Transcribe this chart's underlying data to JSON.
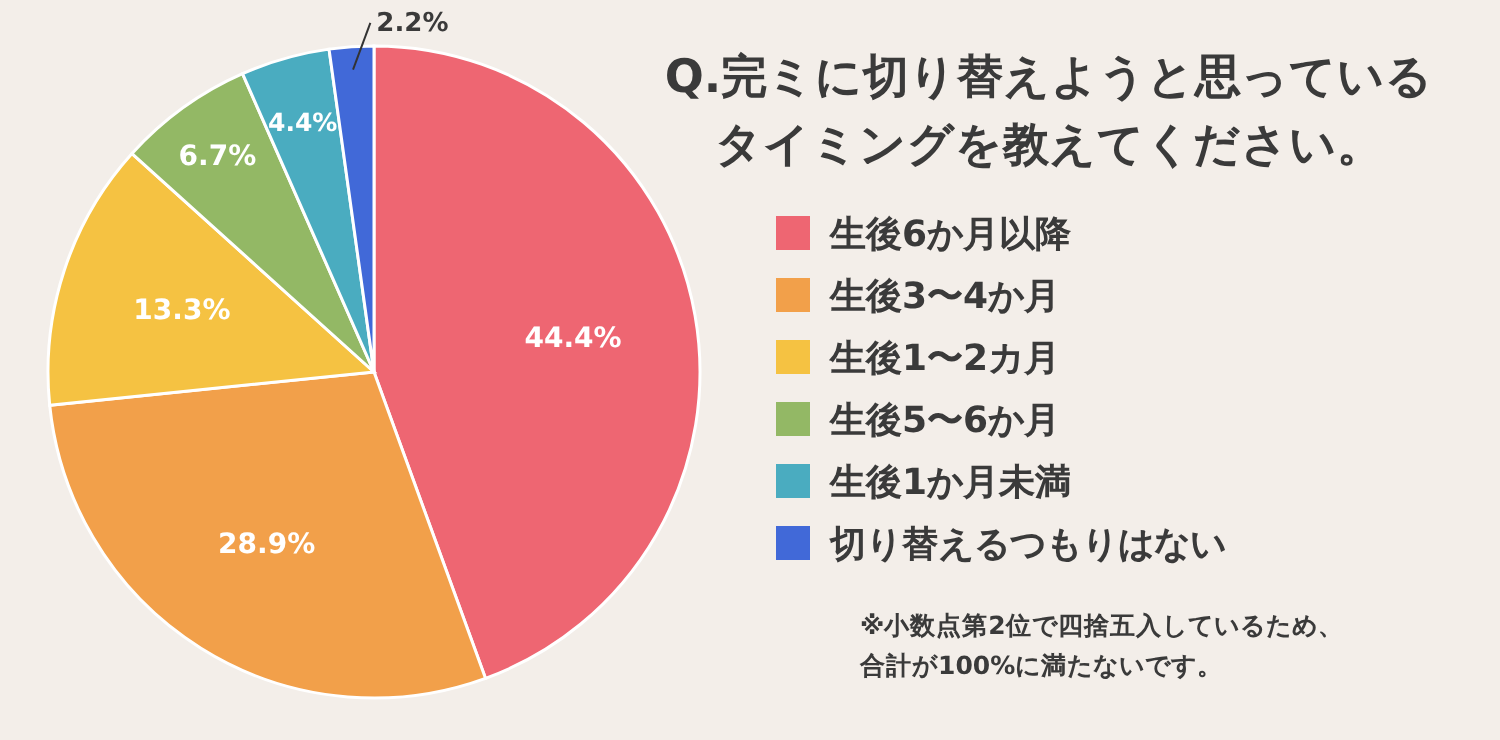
{
  "chart_data": {
    "type": "pie",
    "title": "Q.完ミに切り替えようと思っているタイミングを教えてください。",
    "categories": [
      "生後6か月以降",
      "生後3〜4か月",
      "生後1〜2カ月",
      "生後5〜6か月",
      "生後1か月未満",
      "切り替えるつもりはない"
    ],
    "values": [
      44.4,
      28.9,
      13.3,
      6.7,
      4.4,
      2.2
    ],
    "value_labels": [
      "44.4%",
      "28.9%",
      "13.3%",
      "6.7%",
      "4.4%",
      "2.2%"
    ],
    "colors": [
      "#ee6672",
      "#f2a04a",
      "#f5c242",
      "#93b865",
      "#4aacc0",
      "#4169d8"
    ],
    "legend": "right",
    "annotations": [
      "※小数点第2位で四捨五入しているため、合計が100%に満たないです。"
    ]
  }
}
